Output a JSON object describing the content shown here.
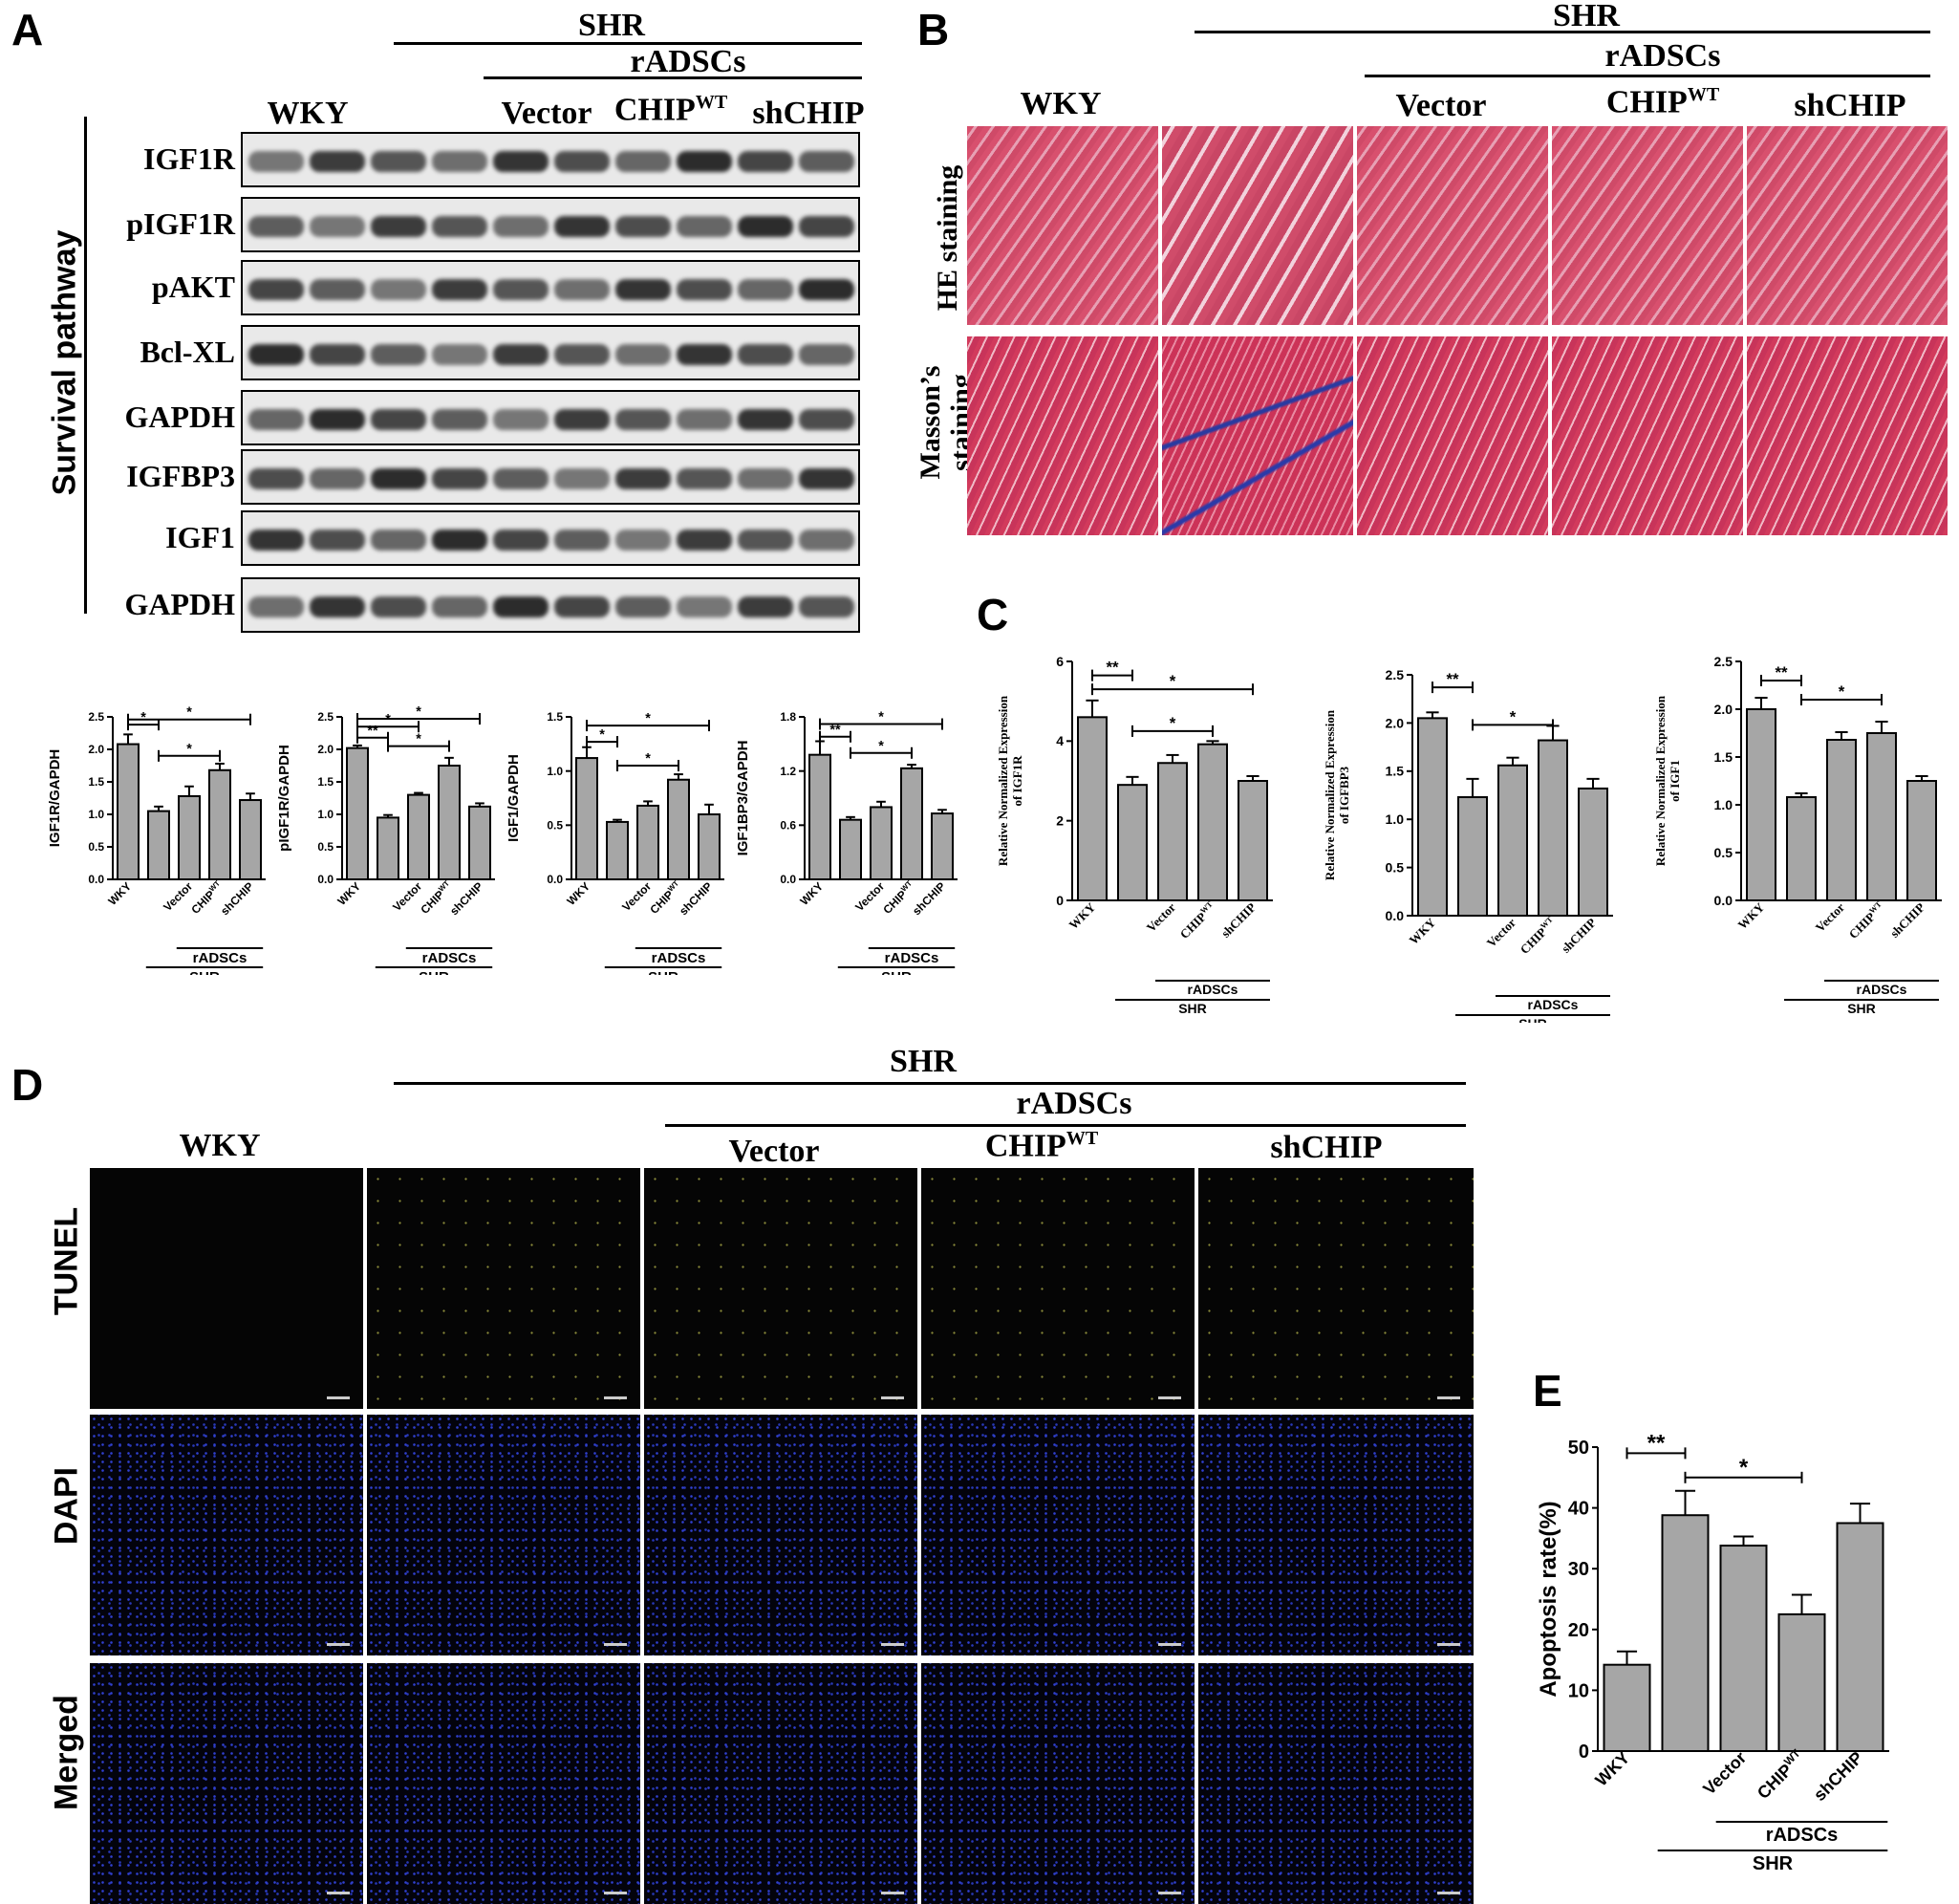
{
  "panel_labels": {
    "a": "A",
    "b": "B",
    "c": "C",
    "d": "D",
    "e": "E"
  },
  "groups": {
    "wky": "WKY",
    "shr": "SHR",
    "radscs": "rADSCs",
    "vector": "Vector",
    "chip": "CHIP",
    "wt": "WT",
    "shchip": "shCHIP"
  },
  "panel_a": {
    "side_label": "Survival pathway",
    "blots": [
      "IGF1R",
      "pIGF1R",
      "pAKT",
      "Bcl-XL",
      "GAPDH",
      "IGFBP3",
      "IGF1",
      "GAPDH"
    ]
  },
  "panel_b": {
    "row1": "HE staining",
    "row2_line1": "Masson’s",
    "row2_line2": "staining"
  },
  "panel_d": {
    "rows": [
      "TUNEL",
      "DAPI",
      "Merged"
    ]
  },
  "chart_data": [
    {
      "id": "a1",
      "type": "bar",
      "ylabel": "IGF1R/GAPDH",
      "ylim": [
        0,
        2.5
      ],
      "yticks": [
        0,
        0.5,
        1.0,
        1.5,
        2.0,
        2.5
      ],
      "categories": [
        "WKY",
        "",
        "Vector",
        "CHIP",
        "shCHIP"
      ],
      "values": [
        2.08,
        1.05,
        1.28,
        1.68,
        1.22
      ],
      "errors": [
        0.15,
        0.07,
        0.15,
        0.1,
        0.1
      ],
      "sig": [
        {
          "from": 0,
          "to": 1,
          "label": "*",
          "y": 2.38
        },
        {
          "from": 0,
          "to": 4,
          "label": "*",
          "y": 2.46
        },
        {
          "from": 1,
          "to": 3,
          "label": "*",
          "y": 1.9
        }
      ]
    },
    {
      "id": "a2",
      "type": "bar",
      "ylabel": "pIGF1R/GAPDH",
      "ylim": [
        0,
        2.5
      ],
      "yticks": [
        0,
        0.5,
        1.0,
        1.5,
        2.0,
        2.5
      ],
      "categories": [
        "WKY",
        "",
        "Vector",
        "CHIP",
        "shCHIP"
      ],
      "values": [
        2.02,
        0.95,
        1.3,
        1.75,
        1.12
      ],
      "errors": [
        0.04,
        0.04,
        0.03,
        0.12,
        0.05
      ],
      "sig": [
        {
          "from": 0,
          "to": 1,
          "label": "**",
          "y": 2.18
        },
        {
          "from": 0,
          "to": 2,
          "label": "*",
          "y": 2.35
        },
        {
          "from": 0,
          "to": 4,
          "label": "*",
          "y": 2.47
        },
        {
          "from": 1,
          "to": 3,
          "label": "*",
          "y": 2.05
        }
      ]
    },
    {
      "id": "a3",
      "type": "bar",
      "ylabel": "IGF1/GAPDH",
      "ylim": [
        0,
        1.5
      ],
      "yticks": [
        0,
        0.5,
        1.0,
        1.5
      ],
      "categories": [
        "WKY",
        "",
        "Vector",
        "CHIP",
        "shCHIP"
      ],
      "values": [
        1.12,
        0.53,
        0.68,
        0.92,
        0.6
      ],
      "errors": [
        0.1,
        0.02,
        0.04,
        0.05,
        0.09
      ],
      "sig": [
        {
          "from": 0,
          "to": 1,
          "label": "*",
          "y": 1.27
        },
        {
          "from": 0,
          "to": 4,
          "label": "*",
          "y": 1.42
        },
        {
          "from": 1,
          "to": 3,
          "label": "*",
          "y": 1.05
        }
      ]
    },
    {
      "id": "a4",
      "type": "bar",
      "ylabel": "IGF1BP3/GAPDH",
      "ylim": [
        0,
        1.8
      ],
      "yticks": [
        0,
        0.6,
        1.2,
        1.8
      ],
      "categories": [
        "WKY",
        "",
        "Vector",
        "CHIP",
        "shCHIP"
      ],
      "values": [
        1.38,
        0.66,
        0.8,
        1.23,
        0.73
      ],
      "errors": [
        0.15,
        0.03,
        0.06,
        0.04,
        0.04
      ],
      "sig": [
        {
          "from": 0,
          "to": 1,
          "label": "**",
          "y": 1.58
        },
        {
          "from": 0,
          "to": 4,
          "label": "*",
          "y": 1.72
        },
        {
          "from": 1,
          "to": 3,
          "label": "*",
          "y": 1.4
        }
      ]
    },
    {
      "id": "c1",
      "type": "bar",
      "ylabel_line1": "Relative Normalized Expression",
      "ylabel_line2": "of IGF1R",
      "ylim": [
        0,
        6
      ],
      "yticks": [
        0,
        2,
        4,
        6
      ],
      "categories": [
        "WKY",
        "",
        "Vector",
        "CHIP",
        "shCHIP"
      ],
      "values": [
        4.6,
        2.9,
        3.45,
        3.92,
        3.0
      ],
      "errors": [
        0.42,
        0.2,
        0.2,
        0.08,
        0.12
      ],
      "sig": [
        {
          "from": 0,
          "to": 1,
          "label": "**",
          "y": 5.65
        },
        {
          "from": 0,
          "to": 4,
          "label": "*",
          "y": 5.3
        },
        {
          "from": 1,
          "to": 3,
          "label": "*",
          "y": 4.25
        }
      ]
    },
    {
      "id": "c2",
      "type": "bar",
      "ylabel_line1": "Relative Normalized Expression",
      "ylabel_line2": "of IGFBP3",
      "ylim": [
        0,
        2.5
      ],
      "yticks": [
        0,
        0.5,
        1.0,
        1.5,
        2.0,
        2.5
      ],
      "categories": [
        "WKY",
        "",
        "Vector",
        "CHIP",
        "shCHIP"
      ],
      "values": [
        2.05,
        1.23,
        1.56,
        1.82,
        1.32
      ],
      "errors": [
        0.06,
        0.19,
        0.08,
        0.15,
        0.1
      ],
      "sig": [
        {
          "from": 0,
          "to": 1,
          "label": "**",
          "y": 2.37
        },
        {
          "from": 1,
          "to": 3,
          "label": "*",
          "y": 1.98
        }
      ]
    },
    {
      "id": "c3",
      "type": "bar",
      "ylabel_line1": "Relative Normalized Expression",
      "ylabel_line2": "of IGF1",
      "ylim": [
        0,
        2.5
      ],
      "yticks": [
        0,
        0.5,
        1.0,
        1.5,
        2.0,
        2.5
      ],
      "categories": [
        "WKY",
        "",
        "Vector",
        "CHIP",
        "shCHIP"
      ],
      "values": [
        2.0,
        1.08,
        1.68,
        1.75,
        1.25
      ],
      "errors": [
        0.12,
        0.04,
        0.08,
        0.12,
        0.05
      ],
      "sig": [
        {
          "from": 0,
          "to": 1,
          "label": "**",
          "y": 2.3
        },
        {
          "from": 1,
          "to": 3,
          "label": "*",
          "y": 2.1
        }
      ]
    },
    {
      "id": "e",
      "type": "bar",
      "ylabel": "Apoptosis rate(%)",
      "ylim": [
        0,
        50
      ],
      "yticks": [
        0,
        10,
        20,
        30,
        40,
        50
      ],
      "categories": [
        "WKY",
        "",
        "Vector",
        "CHIP",
        "shCHIP"
      ],
      "values": [
        14.2,
        38.8,
        33.8,
        22.5,
        37.5
      ],
      "errors": [
        2.2,
        4.0,
        1.5,
        3.2,
        3.2
      ],
      "sig": [
        {
          "from": 0,
          "to": 1,
          "label": "**",
          "y": 49
        },
        {
          "from": 1,
          "to": 3,
          "label": "*",
          "y": 45
        }
      ]
    }
  ]
}
